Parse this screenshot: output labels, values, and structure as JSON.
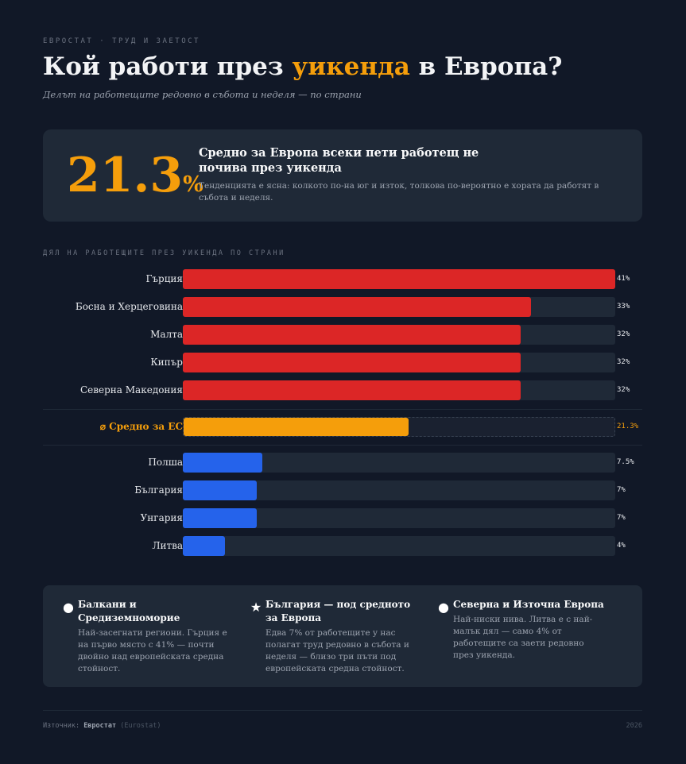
{
  "header": {
    "eyebrow": "ЕВРОСТАТ · ТРУД И ЗАЕТОСТ",
    "title_pre": "Кой работи през ",
    "title_highlight": "уикенда",
    "title_post": " в Европа?",
    "subtitle": "Делът на работещите редовно в събота и неделя — по страни"
  },
  "stat": {
    "number": "21.3",
    "unit": "%",
    "headline": "Средно за Европа всеки пети работещ не почива през уикенда",
    "description": "Тенденцията е ясна: колкото по-на юг и изток, толкова по-вероятно е хората да работят в събота и неделя."
  },
  "section_label": "ДЯЛ НА РАБОТЕЩИТЕ ПРЕЗ УИКЕНДА ПО СТРАНИ",
  "chart_data": {
    "type": "bar",
    "orientation": "horizontal",
    "xlim": [
      0,
      41
    ],
    "unit": "%",
    "colors": {
      "high": "#dc2626",
      "average": "#f59e0b",
      "low": "#2563eb"
    },
    "groups": [
      {
        "kind": "high",
        "rows": [
          {
            "label": "Гърция",
            "value": 41,
            "display": "41%"
          },
          {
            "label": "Босна и Херцеговина",
            "value": 33,
            "display": "33%"
          },
          {
            "label": "Малта",
            "value": 32,
            "display": "32%"
          },
          {
            "label": "Кипър",
            "value": 32,
            "display": "32%"
          },
          {
            "label": "Северна Македония",
            "value": 32,
            "display": "32%"
          }
        ]
      },
      {
        "kind": "average",
        "rows": [
          {
            "label": "⌀ Средно за ЕС",
            "value": 21.3,
            "display": "21.3%"
          }
        ]
      },
      {
        "kind": "low",
        "rows": [
          {
            "label": "Полша",
            "value": 7.5,
            "display": "7.5%"
          },
          {
            "label": "България",
            "value": 7,
            "display": "7%"
          },
          {
            "label": "Унгария",
            "value": 7,
            "display": "7%"
          },
          {
            "label": "Литва",
            "value": 4,
            "display": "4%"
          }
        ]
      }
    ]
  },
  "notes": [
    {
      "icon": "circle-icon",
      "glyph": "●",
      "title": "Балкани и Средиземноморие",
      "text": "Най-засегнати региони. Гърция е на първо място с 41% — почти двойно над европейската средна стойност."
    },
    {
      "icon": "star-icon",
      "glyph": "★",
      "title": "България — под средното за Европа",
      "text": "Едва 7% от работещите у нас полагат труд редовно в събота и неделя — близо три пъти под европейската средна стойност."
    },
    {
      "icon": "circle-icon",
      "glyph": "●",
      "title": "Северна и Източна Европа",
      "text": "Най-ниски нива. Литва е с най-малък дял — само 4% от работещите са заети редовно през уикенда."
    }
  ],
  "footer": {
    "source_prefix": "Източник: ",
    "source": "Евростат",
    "source_alt": " (Eurostat)",
    "year": "2026"
  }
}
